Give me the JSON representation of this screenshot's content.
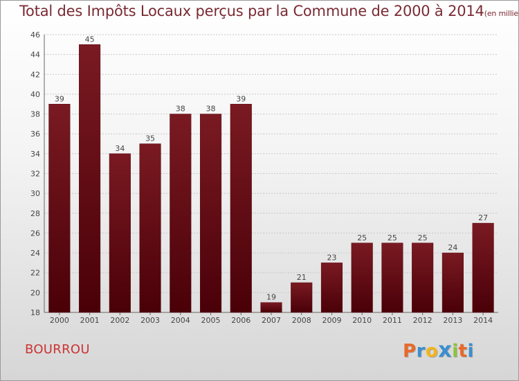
{
  "chart_data": {
    "type": "bar",
    "title": "Total des Impôts Locaux perçus par la Commune de 2000 à 2014",
    "unit_note": "(en milliers d'€)",
    "categories": [
      "2000",
      "2001",
      "2002",
      "2003",
      "2004",
      "2005",
      "2006",
      "2007",
      "2008",
      "2009",
      "2010",
      "2011",
      "2012",
      "2013",
      "2014"
    ],
    "values": [
      39,
      45,
      34,
      35,
      38,
      38,
      39,
      19,
      21,
      23,
      25,
      25,
      25,
      24,
      27
    ],
    "ylim": [
      18,
      46
    ],
    "yticks": [
      18,
      20,
      22,
      24,
      26,
      28,
      30,
      32,
      34,
      36,
      38,
      40,
      42,
      44,
      46
    ],
    "xlabel": "",
    "ylabel": "",
    "grid": true,
    "bar_color": "#7a1a22",
    "bar_color_dark": "#4a0008"
  },
  "commune": "BOURROU",
  "logo": {
    "letters": [
      "P",
      "r",
      "o",
      "x",
      "i",
      "t",
      "i"
    ],
    "colors": [
      "#e8692a",
      "#3a8fd0",
      "#f2b61b",
      "#3a8fd0",
      "#8fc43a",
      "#e8692a",
      "#3a8fd0"
    ]
  }
}
